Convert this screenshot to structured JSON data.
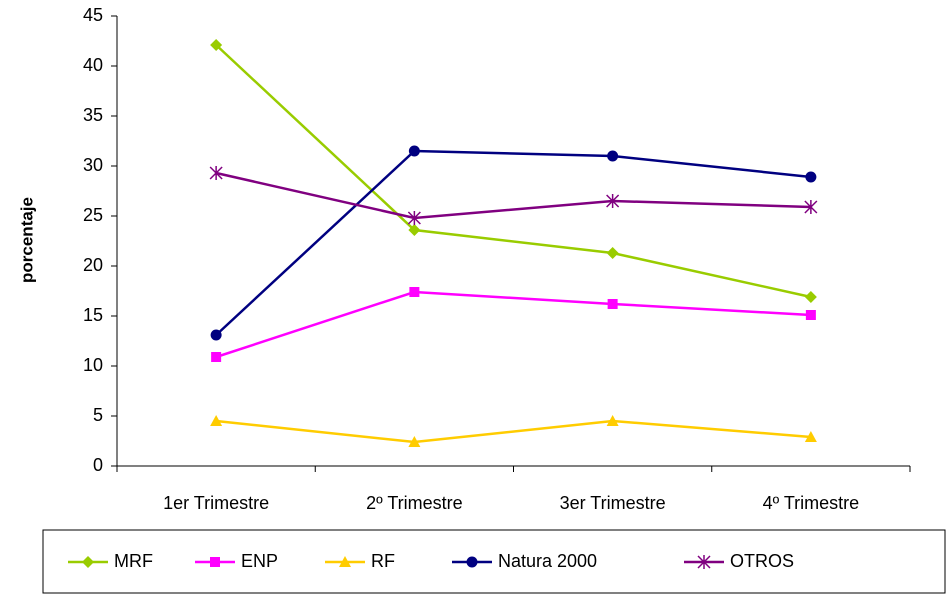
{
  "chart_data": {
    "type": "line",
    "y_label": "porcentaje",
    "categories": [
      "1er Trimestre",
      "2º Trimestre",
      "3er Trimestre",
      "4º Trimestre"
    ],
    "series": [
      {
        "name": "MRF",
        "color": "#99cc00",
        "marker": "diamond",
        "values": [
          42.1,
          23.6,
          21.3,
          16.9
        ]
      },
      {
        "name": "ENP",
        "color": "#ff00ff",
        "marker": "square",
        "values": [
          10.9,
          17.4,
          16.2,
          15.1
        ]
      },
      {
        "name": "RF",
        "color": "#ffcc00",
        "marker": "triangle",
        "values": [
          4.5,
          2.4,
          4.5,
          2.9
        ]
      },
      {
        "name": "Natura 2000",
        "color": "#000080",
        "marker": "circle",
        "values": [
          13.1,
          31.5,
          31.0,
          28.9
        ]
      },
      {
        "name": "OTROS",
        "color": "#800080",
        "marker": "asterisk",
        "values": [
          29.3,
          24.8,
          26.5,
          25.9
        ]
      }
    ],
    "ylim": [
      0,
      45
    ],
    "yticks": [
      0,
      5,
      10,
      15,
      20,
      25,
      30,
      35,
      40,
      45
    ],
    "grid": false,
    "legend": "bottom"
  }
}
